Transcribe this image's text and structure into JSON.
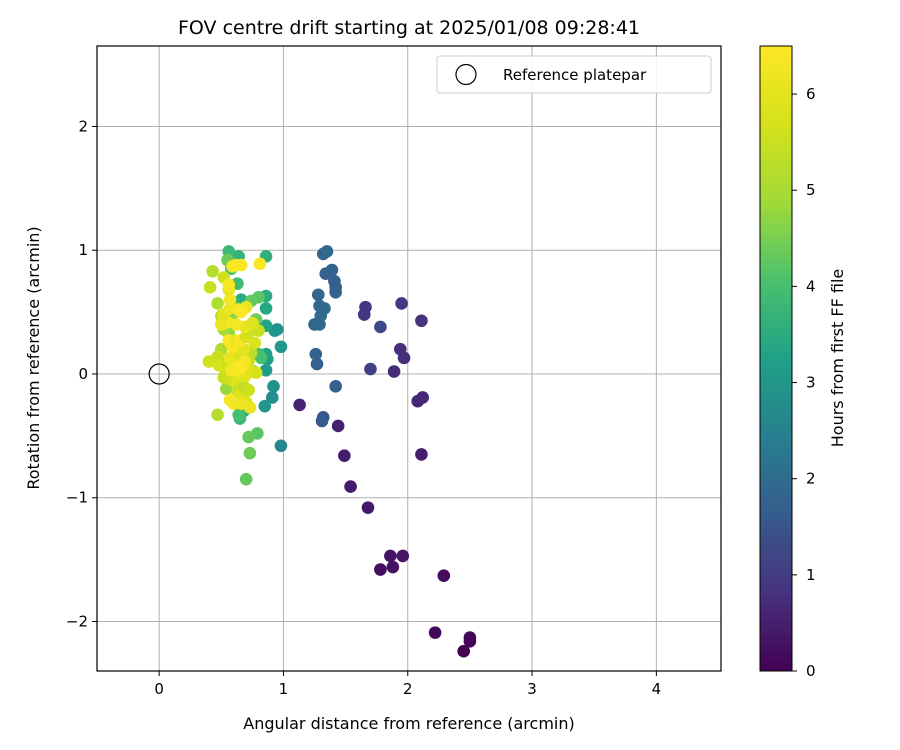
{
  "chart_data": {
    "type": "scatter",
    "title": "FOV centre drift starting at 2025/01/08 09:28:41",
    "xlabel": "Angular distance from reference (arcmin)",
    "ylabel": "Rotation from reference (arcmin)",
    "xlim": [
      -0.5,
      4.52
    ],
    "ylim": [
      -2.4,
      2.65
    ],
    "x_ticks": [
      0,
      1,
      2,
      3,
      4
    ],
    "y_ticks": [
      -2,
      -1,
      0,
      1,
      2
    ],
    "x_tick_labels": [
      "0",
      "1",
      "2",
      "3",
      "4"
    ],
    "y_tick_labels": [
      "−2",
      "−1",
      "0",
      "1",
      "2"
    ],
    "grid": true,
    "legend": {
      "placement": "top-right",
      "entries": [
        "Reference platepar"
      ]
    },
    "colorbar": {
      "label": "Hours from first FF file",
      "range": [
        0,
        6.5
      ],
      "ticks": [
        0,
        1,
        2,
        3,
        4,
        5,
        6
      ],
      "tick_labels": [
        "0",
        "1",
        "2",
        "3",
        "4",
        "5",
        "6"
      ],
      "colormap": "viridis"
    },
    "reference_point": {
      "x": 0,
      "y": 0
    },
    "points": [
      {
        "x": 2.45,
        "y": -2.24,
        "c": 0.0
      },
      {
        "x": 2.5,
        "y": -2.16,
        "c": 0.05
      },
      {
        "x": 2.5,
        "y": -2.13,
        "c": 0.08
      },
      {
        "x": 2.22,
        "y": -2.09,
        "c": 0.12
      },
      {
        "x": 2.29,
        "y": -1.63,
        "c": 0.18
      },
      {
        "x": 1.78,
        "y": -1.58,
        "c": 0.22
      },
      {
        "x": 1.88,
        "y": -1.56,
        "c": 0.26
      },
      {
        "x": 1.86,
        "y": -1.47,
        "c": 0.3
      },
      {
        "x": 1.96,
        "y": -1.47,
        "c": 0.34
      },
      {
        "x": 1.68,
        "y": -1.08,
        "c": 0.38
      },
      {
        "x": 1.54,
        "y": -0.91,
        "c": 0.42
      },
      {
        "x": 1.49,
        "y": -0.66,
        "c": 0.46
      },
      {
        "x": 2.11,
        "y": -0.65,
        "c": 0.5
      },
      {
        "x": 1.44,
        "y": -0.42,
        "c": 0.54
      },
      {
        "x": 1.13,
        "y": -0.25,
        "c": 0.58
      },
      {
        "x": 2.08,
        "y": -0.22,
        "c": 0.62
      },
      {
        "x": 2.12,
        "y": -0.19,
        "c": 0.66
      },
      {
        "x": 1.89,
        "y": 0.02,
        "c": 0.7
      },
      {
        "x": 1.97,
        "y": 0.13,
        "c": 0.74
      },
      {
        "x": 1.94,
        "y": 0.2,
        "c": 0.78
      },
      {
        "x": 2.11,
        "y": 0.43,
        "c": 0.82
      },
      {
        "x": 1.65,
        "y": 0.48,
        "c": 0.86
      },
      {
        "x": 1.66,
        "y": 0.54,
        "c": 0.9
      },
      {
        "x": 1.95,
        "y": 0.57,
        "c": 0.94
      },
      {
        "x": 1.7,
        "y": 0.04,
        "c": 1.1
      },
      {
        "x": 1.78,
        "y": 0.38,
        "c": 1.3
      },
      {
        "x": 1.32,
        "y": -0.35,
        "c": 1.5
      },
      {
        "x": 1.31,
        "y": -0.38,
        "c": 1.6
      },
      {
        "x": 1.42,
        "y": -0.1,
        "c": 1.7
      },
      {
        "x": 1.27,
        "y": 0.08,
        "c": 1.75
      },
      {
        "x": 1.26,
        "y": 0.16,
        "c": 1.8
      },
      {
        "x": 1.25,
        "y": 0.4,
        "c": 1.85
      },
      {
        "x": 1.29,
        "y": 0.4,
        "c": 1.9
      },
      {
        "x": 1.3,
        "y": 0.47,
        "c": 1.95
      },
      {
        "x": 1.33,
        "y": 0.53,
        "c": 2.0
      },
      {
        "x": 1.29,
        "y": 0.55,
        "c": 1.9
      },
      {
        "x": 1.28,
        "y": 0.64,
        "c": 1.85
      },
      {
        "x": 1.42,
        "y": 0.66,
        "c": 1.8
      },
      {
        "x": 1.42,
        "y": 0.7,
        "c": 1.75
      },
      {
        "x": 1.41,
        "y": 0.75,
        "c": 1.7
      },
      {
        "x": 1.34,
        "y": 0.81,
        "c": 1.75
      },
      {
        "x": 1.39,
        "y": 0.84,
        "c": 1.8
      },
      {
        "x": 1.32,
        "y": 0.97,
        "c": 1.85
      },
      {
        "x": 1.35,
        "y": 0.99,
        "c": 1.9
      },
      {
        "x": 0.98,
        "y": -0.58,
        "c": 2.6
      },
      {
        "x": 0.91,
        "y": -0.19,
        "c": 2.8
      },
      {
        "x": 0.92,
        "y": -0.1,
        "c": 2.9
      },
      {
        "x": 0.85,
        "y": -0.26,
        "c": 3.0
      },
      {
        "x": 0.86,
        "y": 0.03,
        "c": 3.1
      },
      {
        "x": 0.87,
        "y": 0.12,
        "c": 3.2
      },
      {
        "x": 0.86,
        "y": 0.16,
        "c": 3.25
      },
      {
        "x": 0.98,
        "y": 0.22,
        "c": 3.0
      },
      {
        "x": 0.93,
        "y": 0.35,
        "c": 3.1
      },
      {
        "x": 0.95,
        "y": 0.36,
        "c": 2.95
      },
      {
        "x": 0.86,
        "y": 0.39,
        "c": 3.3
      },
      {
        "x": 0.86,
        "y": 0.53,
        "c": 3.4
      },
      {
        "x": 0.86,
        "y": 0.63,
        "c": 3.5
      },
      {
        "x": 0.86,
        "y": 0.95,
        "c": 3.6
      },
      {
        "x": 0.66,
        "y": 0.6,
        "c": 3.5
      },
      {
        "x": 0.64,
        "y": 0.95,
        "c": 3.7
      },
      {
        "x": 0.56,
        "y": 0.99,
        "c": 3.8
      },
      {
        "x": 0.63,
        "y": 0.73,
        "c": 3.9
      },
      {
        "x": 0.58,
        "y": 0.85,
        "c": 4.0
      },
      {
        "x": 0.68,
        "y": -0.3,
        "c": 3.6
      },
      {
        "x": 0.65,
        "y": -0.36,
        "c": 3.8
      },
      {
        "x": 0.64,
        "y": -0.33,
        "c": 4.0
      },
      {
        "x": 0.79,
        "y": -0.48,
        "c": 4.2
      },
      {
        "x": 0.72,
        "y": -0.51,
        "c": 4.3
      },
      {
        "x": 0.73,
        "y": -0.64,
        "c": 4.4
      },
      {
        "x": 0.7,
        "y": -0.85,
        "c": 4.3
      },
      {
        "x": 0.76,
        "y": 0.02,
        "c": 3.8
      },
      {
        "x": 0.8,
        "y": 0.16,
        "c": 3.9
      },
      {
        "x": 0.82,
        "y": 0.13,
        "c": 4.0
      },
      {
        "x": 0.8,
        "y": 0.62,
        "c": 4.2
      },
      {
        "x": 0.74,
        "y": 0.59,
        "c": 4.3
      },
      {
        "x": 0.78,
        "y": 0.44,
        "c": 4.4
      },
      {
        "x": 0.62,
        "y": 0.53,
        "c": 4.5
      },
      {
        "x": 0.55,
        "y": 0.92,
        "c": 4.4
      },
      {
        "x": 0.59,
        "y": 0.48,
        "c": 4.6
      },
      {
        "x": 0.56,
        "y": 0.33,
        "c": 4.7
      },
      {
        "x": 0.54,
        "y": -0.12,
        "c": 4.8
      },
      {
        "x": 0.55,
        "y": 0.1,
        "c": 4.9
      },
      {
        "x": 0.52,
        "y": 0.36,
        "c": 5.0
      },
      {
        "x": 0.47,
        "y": 0.57,
        "c": 5.1
      },
      {
        "x": 0.43,
        "y": 0.83,
        "c": 5.2
      },
      {
        "x": 0.47,
        "y": -0.33,
        "c": 5.2
      },
      {
        "x": 0.5,
        "y": 0.2,
        "c": 5.1
      },
      {
        "x": 0.5,
        "y": 0.47,
        "c": 5.3
      },
      {
        "x": 0.41,
        "y": 0.7,
        "c": 5.5
      },
      {
        "x": 0.52,
        "y": 0.78,
        "c": 5.6
      },
      {
        "x": 0.4,
        "y": 0.1,
        "c": 5.6
      },
      {
        "x": 0.47,
        "y": 0.14,
        "c": 5.5
      },
      {
        "x": 0.48,
        "y": 0.07,
        "c": 5.7
      },
      {
        "x": 0.53,
        "y": 0.03,
        "c": 5.8
      },
      {
        "x": 0.52,
        "y": -0.03,
        "c": 5.5
      },
      {
        "x": 0.55,
        "y": 0.07,
        "c": 5.6
      },
      {
        "x": 0.58,
        "y": -0.05,
        "c": 5.6
      },
      {
        "x": 0.62,
        "y": -0.06,
        "c": 5.8
      },
      {
        "x": 0.63,
        "y": -0.14,
        "c": 5.5
      },
      {
        "x": 0.66,
        "y": -0.16,
        "c": 5.9
      },
      {
        "x": 0.68,
        "y": -0.1,
        "c": 5.4
      },
      {
        "x": 0.72,
        "y": -0.13,
        "c": 5.6
      },
      {
        "x": 0.7,
        "y": -0.23,
        "c": 5.8
      },
      {
        "x": 0.73,
        "y": -0.27,
        "c": 6.1
      },
      {
        "x": 0.66,
        "y": -0.24,
        "c": 6.2
      },
      {
        "x": 0.57,
        "y": -0.21,
        "c": 6.4
      },
      {
        "x": 0.6,
        "y": -0.24,
        "c": 6.3
      },
      {
        "x": 0.69,
        "y": -0.02,
        "c": 6.0
      },
      {
        "x": 0.72,
        "y": 0.05,
        "c": 5.9
      },
      {
        "x": 0.78,
        "y": 0.01,
        "c": 5.7
      },
      {
        "x": 0.72,
        "y": 0.11,
        "c": 5.5
      },
      {
        "x": 0.74,
        "y": 0.17,
        "c": 5.3
      },
      {
        "x": 0.62,
        "y": 0.02,
        "c": 6.2
      },
      {
        "x": 0.66,
        "y": 0.05,
        "c": 6.5
      },
      {
        "x": 0.6,
        "y": 0.1,
        "c": 6.3
      },
      {
        "x": 0.57,
        "y": 0.13,
        "c": 6.1
      },
      {
        "x": 0.64,
        "y": 0.16,
        "c": 5.8
      },
      {
        "x": 0.68,
        "y": 0.2,
        "c": 6.0
      },
      {
        "x": 0.59,
        "y": 0.22,
        "c": 6.4
      },
      {
        "x": 0.56,
        "y": 0.27,
        "c": 6.5
      },
      {
        "x": 0.61,
        "y": 0.27,
        "c": 6.2
      },
      {
        "x": 0.65,
        "y": 0.27,
        "c": 6.4
      },
      {
        "x": 0.7,
        "y": 0.3,
        "c": 5.7
      },
      {
        "x": 0.74,
        "y": 0.35,
        "c": 5.6
      },
      {
        "x": 0.8,
        "y": 0.35,
        "c": 5.5
      },
      {
        "x": 0.69,
        "y": 0.38,
        "c": 6.1
      },
      {
        "x": 0.62,
        "y": 0.4,
        "c": 6.3
      },
      {
        "x": 0.55,
        "y": 0.42,
        "c": 6.4
      },
      {
        "x": 0.5,
        "y": 0.4,
        "c": 6.2
      },
      {
        "x": 0.52,
        "y": 0.48,
        "c": 6.0
      },
      {
        "x": 0.57,
        "y": 0.53,
        "c": 6.2
      },
      {
        "x": 0.64,
        "y": 0.52,
        "c": 6.3
      },
      {
        "x": 0.7,
        "y": 0.54,
        "c": 6.1
      },
      {
        "x": 0.66,
        "y": 0.5,
        "c": 6.5
      },
      {
        "x": 0.57,
        "y": 0.6,
        "c": 6.3
      },
      {
        "x": 0.56,
        "y": 0.68,
        "c": 6.2
      },
      {
        "x": 0.56,
        "y": 0.72,
        "c": 6.4
      },
      {
        "x": 0.59,
        "y": 0.87,
        "c": 6.3
      },
      {
        "x": 0.62,
        "y": 0.88,
        "c": 6.5
      },
      {
        "x": 0.66,
        "y": 0.88,
        "c": 6.4
      },
      {
        "x": 0.81,
        "y": 0.89,
        "c": 6.5
      },
      {
        "x": 0.75,
        "y": 0.41,
        "c": 5.9
      },
      {
        "x": 0.77,
        "y": 0.25,
        "c": 5.8
      },
      {
        "x": 0.69,
        "y": 0.1,
        "c": 6.3
      },
      {
        "x": 0.64,
        "y": 0.05,
        "c": 6.5
      },
      {
        "x": 0.58,
        "y": 0.03,
        "c": 6.3
      }
    ]
  }
}
